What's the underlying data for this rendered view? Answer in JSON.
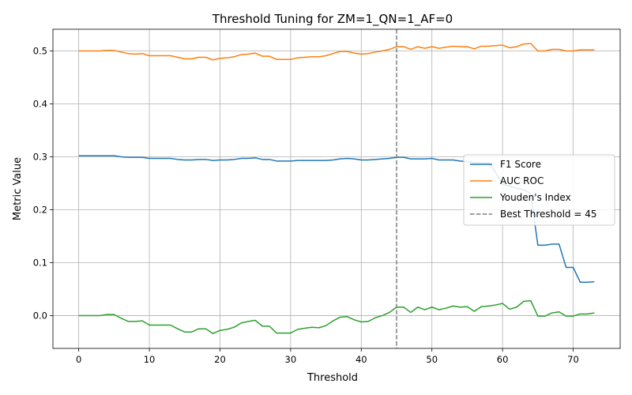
{
  "chart_data": {
    "type": "line",
    "title": "Threshold Tuning for ZM=1_QN=1_AF=0",
    "xlabel": "Threshold",
    "ylabel": "Metric Value",
    "xlim": [
      -3.65,
      76.65
    ],
    "ylim": [
      -0.062,
      0.541
    ],
    "x_ticks": [
      0,
      10,
      20,
      30,
      40,
      50,
      60,
      70
    ],
    "y_ticks": [
      0.0,
      0.1,
      0.2,
      0.3,
      0.4,
      0.5
    ],
    "y_tick_labels": [
      "0.0",
      "0.1",
      "0.2",
      "0.3",
      "0.4",
      "0.5"
    ],
    "grid": true,
    "legend_position": "center-right",
    "x": [
      0,
      1,
      2,
      3,
      4,
      5,
      6,
      7,
      8,
      9,
      10,
      11,
      12,
      13,
      14,
      15,
      16,
      17,
      18,
      19,
      20,
      21,
      22,
      23,
      24,
      25,
      26,
      27,
      28,
      29,
      30,
      31,
      32,
      33,
      34,
      35,
      36,
      37,
      38,
      39,
      40,
      41,
      42,
      43,
      44,
      45,
      46,
      47,
      48,
      49,
      50,
      51,
      52,
      53,
      54,
      55,
      56,
      57,
      58,
      59,
      60,
      61,
      62,
      63,
      64,
      65,
      66,
      67,
      68,
      69,
      70,
      71,
      72,
      73
    ],
    "series": [
      {
        "name": "F1 Score",
        "color": "#1f77b4",
        "values": [
          0.302,
          0.302,
          0.302,
          0.302,
          0.302,
          0.302,
          0.3,
          0.299,
          0.299,
          0.299,
          0.297,
          0.297,
          0.297,
          0.297,
          0.295,
          0.294,
          0.294,
          0.295,
          0.295,
          0.293,
          0.294,
          0.294,
          0.295,
          0.297,
          0.297,
          0.298,
          0.295,
          0.295,
          0.292,
          0.292,
          0.292,
          0.293,
          0.293,
          0.293,
          0.293,
          0.293,
          0.294,
          0.296,
          0.297,
          0.296,
          0.294,
          0.294,
          0.295,
          0.296,
          0.297,
          0.299,
          0.299,
          0.296,
          0.296,
          0.296,
          0.297,
          0.294,
          0.294,
          0.294,
          0.292,
          0.291,
          0.289,
          0.289,
          0.289,
          0.271,
          0.248,
          0.245,
          0.24,
          0.238,
          0.23,
          0.133,
          0.133,
          0.135,
          0.135,
          0.091,
          0.091,
          0.063,
          0.063,
          0.064
        ]
      },
      {
        "name": "AUC ROC",
        "color": "#ff7f0e",
        "values": [
          0.5,
          0.5,
          0.5,
          0.5,
          0.501,
          0.501,
          0.498,
          0.495,
          0.494,
          0.495,
          0.491,
          0.491,
          0.491,
          0.491,
          0.488,
          0.485,
          0.485,
          0.488,
          0.488,
          0.483,
          0.486,
          0.487,
          0.489,
          0.493,
          0.494,
          0.496,
          0.49,
          0.49,
          0.484,
          0.484,
          0.484,
          0.487,
          0.488,
          0.489,
          0.489,
          0.491,
          0.495,
          0.499,
          0.499,
          0.496,
          0.494,
          0.495,
          0.498,
          0.5,
          0.503,
          0.508,
          0.508,
          0.503,
          0.508,
          0.505,
          0.508,
          0.505,
          0.507,
          0.509,
          0.508,
          0.508,
          0.504,
          0.509,
          0.509,
          0.51,
          0.511,
          0.506,
          0.508,
          0.513,
          0.514,
          0.5,
          0.5,
          0.503,
          0.503,
          0.5,
          0.5,
          0.502,
          0.502,
          0.502
        ]
      },
      {
        "name": "Youden's Index",
        "color": "#2ca02c",
        "values": [
          0.0,
          0.0,
          0.0,
          0.0,
          0.002,
          0.002,
          -0.005,
          -0.011,
          -0.011,
          -0.01,
          -0.018,
          -0.018,
          -0.018,
          -0.018,
          -0.025,
          -0.031,
          -0.031,
          -0.025,
          -0.025,
          -0.034,
          -0.028,
          -0.026,
          -0.022,
          -0.014,
          -0.011,
          -0.009,
          -0.02,
          -0.02,
          -0.033,
          -0.033,
          -0.033,
          -0.026,
          -0.024,
          -0.022,
          -0.023,
          -0.019,
          -0.01,
          -0.003,
          -0.002,
          -0.008,
          -0.012,
          -0.011,
          -0.004,
          0.0,
          0.006,
          0.016,
          0.016,
          0.006,
          0.016,
          0.011,
          0.016,
          0.011,
          0.014,
          0.018,
          0.016,
          0.017,
          0.008,
          0.017,
          0.018,
          0.02,
          0.023,
          0.012,
          0.016,
          0.027,
          0.028,
          -0.001,
          -0.001,
          0.005,
          0.007,
          -0.001,
          -0.001,
          0.003,
          0.003,
          0.005
        ]
      }
    ],
    "reference_line": {
      "name": "Best Threshold = 45",
      "x": 45,
      "color": "#7f7f7f",
      "style": "dashed"
    }
  }
}
